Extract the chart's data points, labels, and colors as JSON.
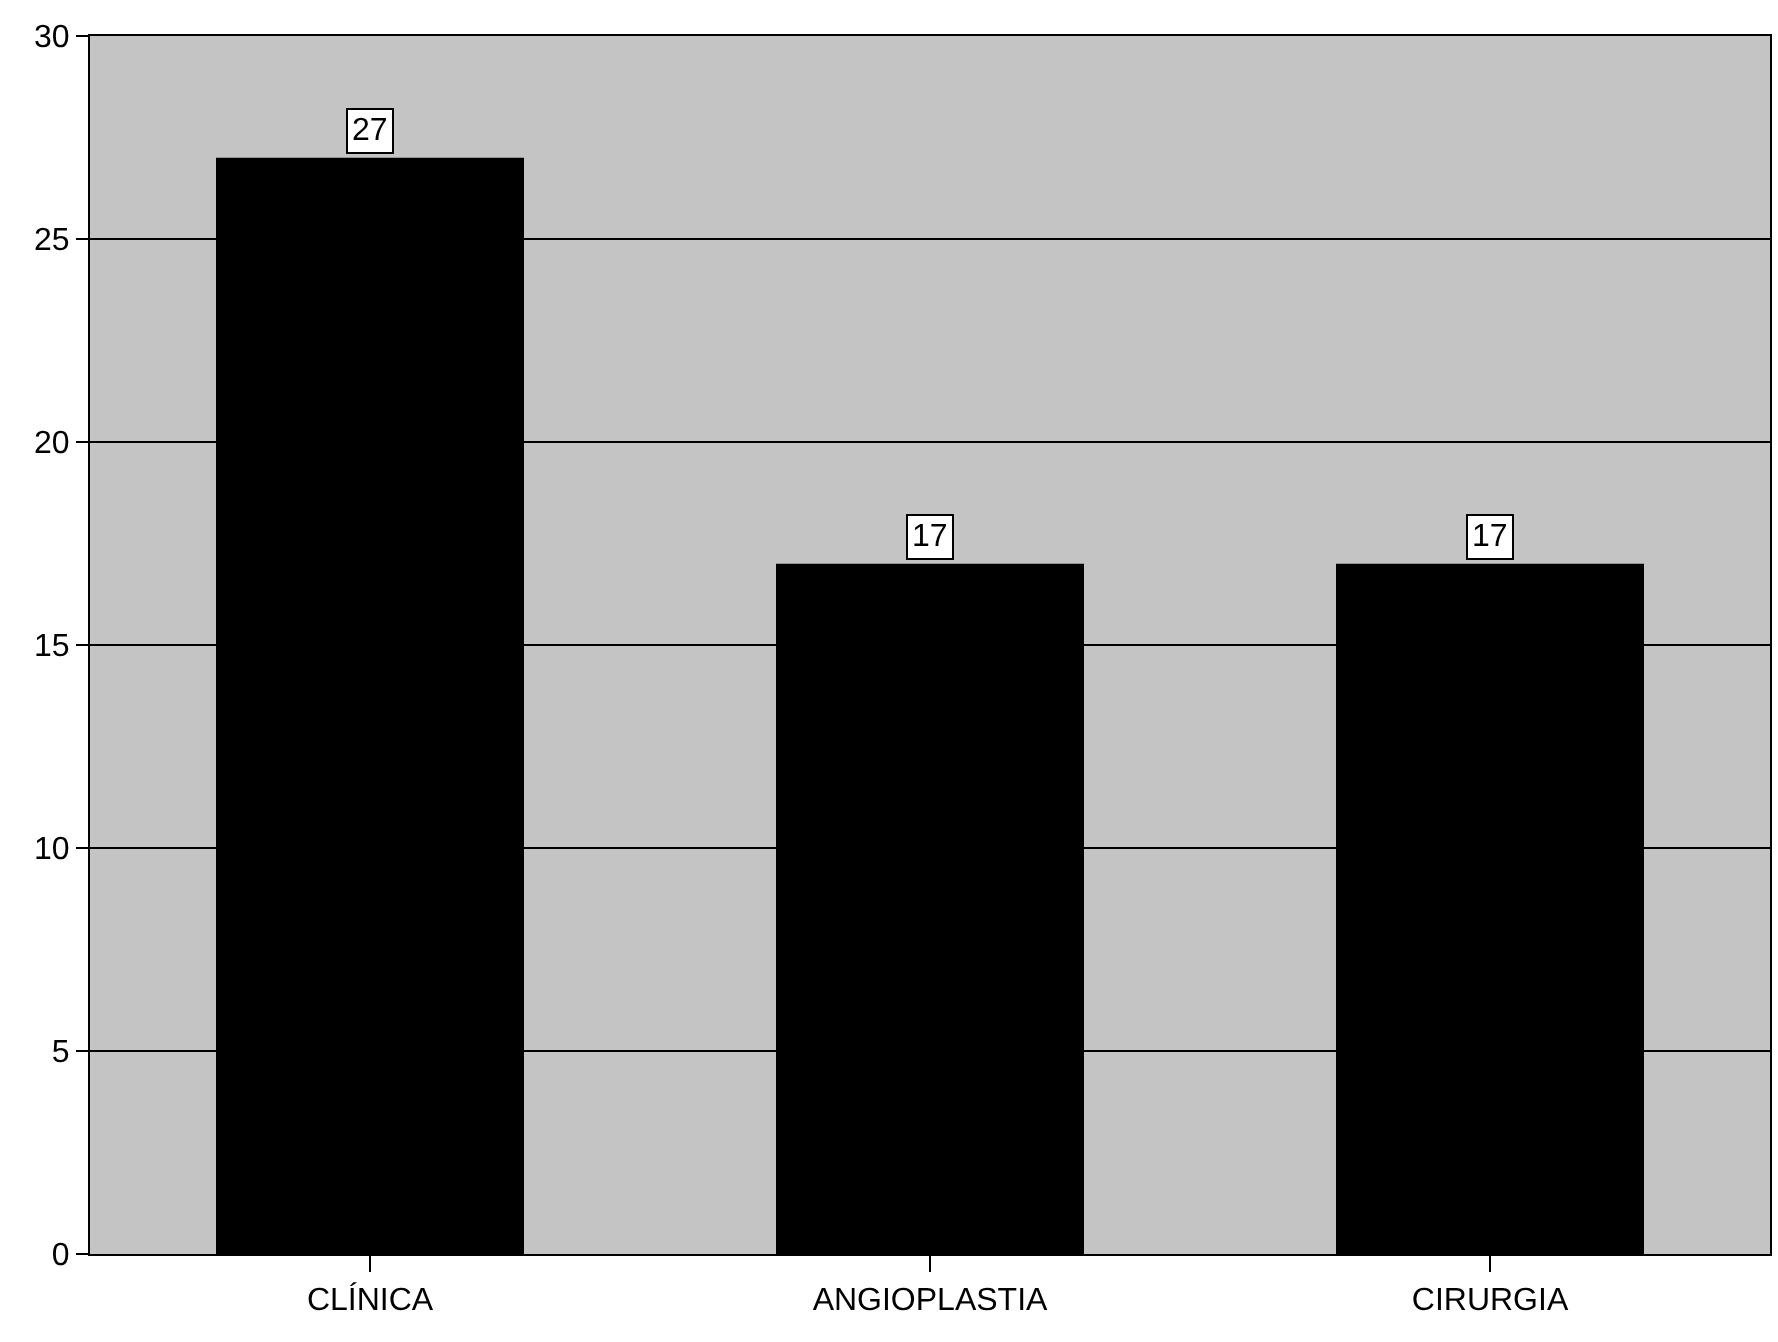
{
  "chart_data": {
    "type": "bar",
    "categories": [
      "CLÍNICA",
      "ANGIOPLASTIA",
      "CIRURGIA"
    ],
    "values": [
      27,
      17,
      17
    ],
    "color": "#000000",
    "ylim": [
      0,
      30
    ],
    "yticks": [
      0,
      5,
      10,
      15,
      20,
      25,
      30
    ],
    "grid": "y",
    "data_labels": true,
    "legend": false
  }
}
